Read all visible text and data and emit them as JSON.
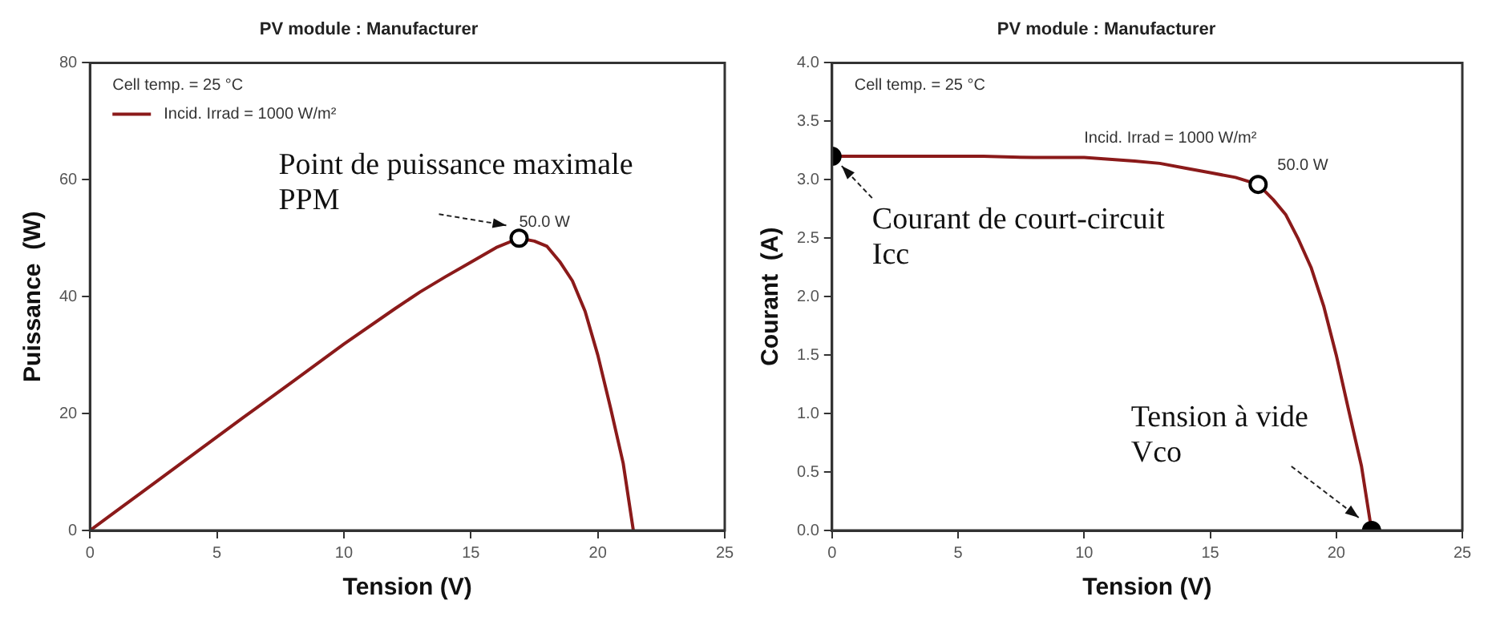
{
  "chart_data": [
    {
      "type": "line",
      "title": "PV module : Manufacturer",
      "xlabel": "Tension (V)",
      "ylabel": "Puissance  (W)",
      "xlim": [
        0,
        25
      ],
      "xticks": [
        0,
        5,
        10,
        15,
        20,
        25
      ],
      "ylim": [
        0,
        80
      ],
      "yticks": [
        0,
        20,
        40,
        60,
        80
      ],
      "grid": false,
      "legend": "top left",
      "x": [
        0,
        1,
        2,
        4,
        6,
        8,
        10,
        12,
        13,
        14,
        15,
        16,
        16.9,
        17.5,
        18,
        18.5,
        19,
        19.5,
        20,
        20.5,
        21,
        21.4
      ],
      "series": [
        {
          "name": "Incid. Irrad = 1000 W/m²",
          "marker": "none",
          "color": "#8b1a1a",
          "values": [
            0,
            3.2,
            6.4,
            12.8,
            19.2,
            25.5,
            31.9,
            37.9,
            40.8,
            43.4,
            45.9,
            48.4,
            50,
            49.5,
            48.6,
            46,
            42.7,
            37.5,
            30,
            21,
            11.5,
            0
          ]
        },
        {
          "type": "scatter",
          "marker": "circle",
          "color": "#ffffff",
          "x": [
            16.9
          ],
          "values": [
            50
          ]
        }
      ],
      "annotations": [
        "Cell temp. = 25 °C",
        {
          "text": "50.0 W",
          "x": 16.9,
          "y": 50
        },
        {
          "text": "Point de puissance maximale\nPPM",
          "x": 16.9,
          "y": 50
        }
      ]
    },
    {
      "type": "line",
      "title": "PV module : Manufacturer",
      "xlabel": "Tension (V)",
      "ylabel": "Courant  (A)",
      "xlim": [
        0,
        25
      ],
      "xticks": [
        0,
        5,
        10,
        15,
        20,
        25
      ],
      "ylim": [
        0,
        4
      ],
      "yticks": [
        {
          "value": 0,
          "label": "0.0"
        },
        {
          "value": 0.5,
          "label": "0.5"
        },
        {
          "value": 1,
          "label": "1.0"
        },
        {
          "value": 1.5,
          "label": "1.5"
        },
        {
          "value": 2,
          "label": "2.0"
        },
        {
          "value": 2.5,
          "label": "2.5"
        },
        {
          "value": 3,
          "label": "3.0"
        },
        {
          "value": 3.5,
          "label": "3.5"
        },
        {
          "value": 4,
          "label": "4.0"
        }
      ],
      "grid": false,
      "legend": false,
      "x": [
        0,
        2,
        4,
        6,
        8,
        10,
        12,
        13,
        14,
        15,
        16,
        16.9,
        17.5,
        18,
        18.5,
        19,
        19.5,
        20,
        20.5,
        21,
        21.4
      ],
      "series": [
        {
          "name": "Incid. Irrad = 1000 W/m²",
          "marker": "none",
          "color": "#8b1a1a",
          "values": [
            3.2,
            3.2,
            3.2,
            3.2,
            3.19,
            3.19,
            3.16,
            3.14,
            3.1,
            3.06,
            3.02,
            2.96,
            2.83,
            2.7,
            2.49,
            2.25,
            1.92,
            1.5,
            1.02,
            0.55,
            0
          ]
        },
        {
          "type": "scatter",
          "marker": "circle",
          "colors": [
            "#000000",
            "#ffffff",
            "#000000"
          ],
          "x": [
            0,
            16.9,
            21.4
          ],
          "values": [
            3.2,
            2.96,
            0
          ]
        }
      ],
      "annotations": [
        "Cell temp. = 25 °C",
        {
          "text": "50.0 W",
          "x": 16.9,
          "y": 2.96
        },
        {
          "text": "Courant de court-circuit\nIcc",
          "x": 0,
          "y": 3.2
        },
        {
          "text": "Tension à vide\nVco",
          "x": 21.4,
          "y": 0
        }
      ]
    }
  ]
}
